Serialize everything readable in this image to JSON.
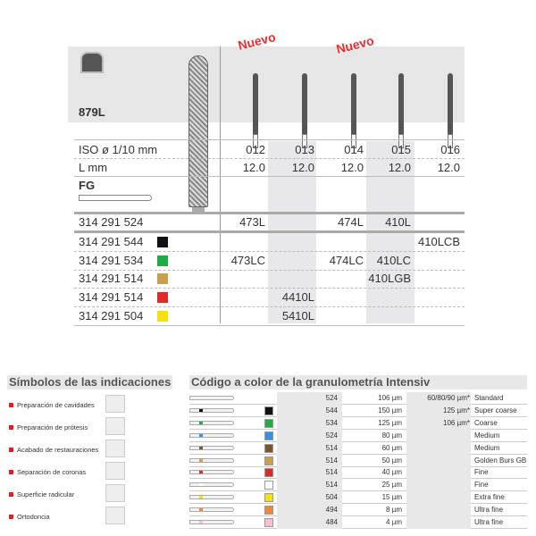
{
  "product": {
    "code": "879L",
    "shank": "FG",
    "new_badges": [
      "Nuevo",
      "Nuevo"
    ]
  },
  "spec_rows": [
    {
      "label": "ISO ø 1/10 mm",
      "values": [
        "012",
        "013",
        "014",
        "015",
        "016"
      ]
    },
    {
      "label": "L mm",
      "values": [
        "12.0",
        "12.0",
        "12.0",
        "12.0",
        "12.0"
      ]
    }
  ],
  "order_rows": [
    {
      "ref": "314 291 524",
      "color": null,
      "cells": [
        "473L",
        "",
        "474L",
        "410L",
        ""
      ]
    },
    {
      "ref": "314 291 544",
      "color": "#111111",
      "cells": [
        "",
        "",
        "",
        "",
        "410LCB"
      ]
    },
    {
      "ref": "314 291 534",
      "color": "#22aa44",
      "cells": [
        "473LC",
        "",
        "474LC",
        "410LC",
        ""
      ]
    },
    {
      "ref": "314 291 514",
      "color": "#c9a050",
      "cells": [
        "",
        "",
        "",
        "410LGB",
        ""
      ]
    },
    {
      "ref": "314 291 514",
      "color": "#e02828",
      "cells": [
        "",
        "4410L",
        "",
        "",
        ""
      ]
    },
    {
      "ref": "314 291 504",
      "color": "#f5e010",
      "cells": [
        "",
        "5410L",
        "",
        "",
        ""
      ]
    }
  ],
  "indications": {
    "title": "Símbolos de las indicaciones",
    "items": [
      {
        "label": "Preparación de cavidades",
        "icon": "cavity-preparation-icon"
      },
      {
        "label": "Preparación de prótesis",
        "icon": "prosthesis-preparation-icon"
      },
      {
        "label": "Acabado de restauraciones",
        "icon": "restoration-finishing-icon"
      },
      {
        "label": "Separación de coronas",
        "icon": "crown-separation-icon"
      },
      {
        "label": "Superficie radicular",
        "icon": "root-surface-icon"
      },
      {
        "label": "Ortodoncia",
        "icon": "orthodontics-icon"
      }
    ]
  },
  "grit": {
    "title": "Código a color de la granulometría Intensiv",
    "rows": [
      {
        "color": null,
        "code": "524",
        "size": "106 µm",
        "alt": "60/80/90 µm*",
        "name": "Standard"
      },
      {
        "color": "#111111",
        "code": "544",
        "size": "150 µm",
        "alt": "125 µm*",
        "name": "Super coarse"
      },
      {
        "color": "#22aa44",
        "code": "534",
        "size": "125 µm",
        "alt": "106 µm*",
        "name": "Coarse"
      },
      {
        "color": "#3a90e0",
        "code": "524",
        "size": "80 µm",
        "alt": "",
        "name": "Medium"
      },
      {
        "color": "#7a5530",
        "code": "514",
        "size": "60 µm",
        "alt": "",
        "name": "Medium"
      },
      {
        "color": "#c9a050",
        "code": "514",
        "size": "50 µm",
        "alt": "",
        "name": "Golden Burs GB"
      },
      {
        "color": "#e02828",
        "code": "514",
        "size": "40 µm",
        "alt": "",
        "name": "Fine"
      },
      {
        "color": "#ffffff",
        "code": "514",
        "size": "25 µm",
        "alt": "",
        "name": "Fine"
      },
      {
        "color": "#f5e010",
        "code": "504",
        "size": "15 µm",
        "alt": "",
        "name": "Extra fine"
      },
      {
        "color": "#f08838",
        "code": "494",
        "size": "8 µm",
        "alt": "",
        "name": "Ultra fine"
      },
      {
        "color": "#f8c0d0",
        "code": "484",
        "size": "4 µm",
        "alt": "",
        "name": "Ultra fine"
      }
    ]
  }
}
